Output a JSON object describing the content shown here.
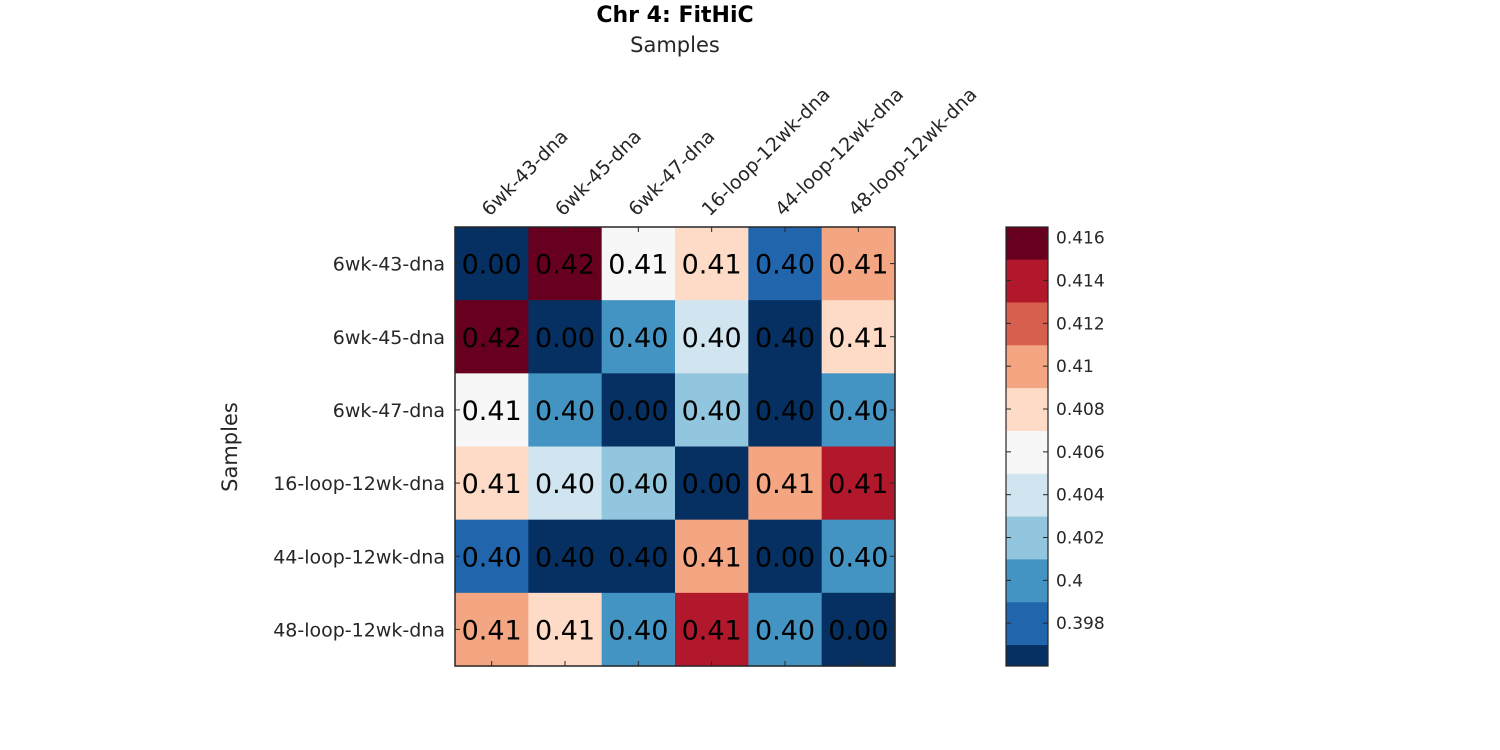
{
  "chart_data": {
    "type": "heatmap",
    "title": "Chr 4: FitHiC",
    "xlabel": "Samples",
    "ylabel": "Samples",
    "x_categories": [
      "6wk-43-dna",
      "6wk-45-dna",
      "6wk-47-dna",
      "16-loop-12wk-dna",
      "44-loop-12wk-dna",
      "48-loop-12wk-dna"
    ],
    "y_categories": [
      "6wk-43-dna",
      "6wk-45-dna",
      "6wk-47-dna",
      "16-loop-12wk-dna",
      "44-loop-12wk-dna",
      "48-loop-12wk-dna"
    ],
    "values": [
      [
        0.0,
        0.4165,
        0.4065,
        0.4085,
        0.3985,
        0.4105
      ],
      [
        0.4165,
        0.0,
        0.4005,
        0.4045,
        0.3965,
        0.4085
      ],
      [
        0.4065,
        0.4005,
        0.0,
        0.4025,
        0.3965,
        0.4005
      ],
      [
        0.4085,
        0.4045,
        0.4025,
        0.0,
        0.4105,
        0.4135
      ],
      [
        0.3985,
        0.3965,
        0.3965,
        0.4105,
        0.0,
        0.4005
      ],
      [
        0.4105,
        0.4085,
        0.4005,
        0.4135,
        0.4005,
        0.0
      ]
    ],
    "cell_labels": [
      [
        "0.00",
        "0.42",
        "0.41",
        "0.41",
        "0.40",
        "0.41"
      ],
      [
        "0.42",
        "0.00",
        "0.40",
        "0.40",
        "0.40",
        "0.41"
      ],
      [
        "0.41",
        "0.40",
        "0.00",
        "0.40",
        "0.40",
        "0.40"
      ],
      [
        "0.41",
        "0.40",
        "0.40",
        "0.00",
        "0.41",
        "0.41"
      ],
      [
        "0.40",
        "0.40",
        "0.40",
        "0.41",
        "0.00",
        "0.40"
      ],
      [
        "0.41",
        "0.41",
        "0.40",
        "0.41",
        "0.40",
        "0.00"
      ]
    ],
    "colorbar": {
      "min": 0.396,
      "max": 0.4165,
      "boundaries": [
        0.396,
        0.397,
        0.399,
        0.401,
        0.403,
        0.405,
        0.407,
        0.409,
        0.411,
        0.413,
        0.415,
        0.4165
      ],
      "colors": [
        "#053061",
        "#2166ac",
        "#4393c3",
        "#92c5de",
        "#d1e5f0",
        "#f7f7f7",
        "#fddbc7",
        "#f4a582",
        "#d6604d",
        "#b2182b",
        "#67001f"
      ],
      "ticks": [
        0.398,
        0.4,
        0.402,
        0.404,
        0.406,
        0.408,
        0.41,
        0.412,
        0.414,
        0.416
      ],
      "tick_labels": [
        "0.398",
        "0.4",
        "0.402",
        "0.404",
        "0.406",
        "0.408",
        "0.41",
        "0.412",
        "0.414",
        "0.416"
      ]
    },
    "grid": false,
    "legend": "colorbar-right"
  }
}
